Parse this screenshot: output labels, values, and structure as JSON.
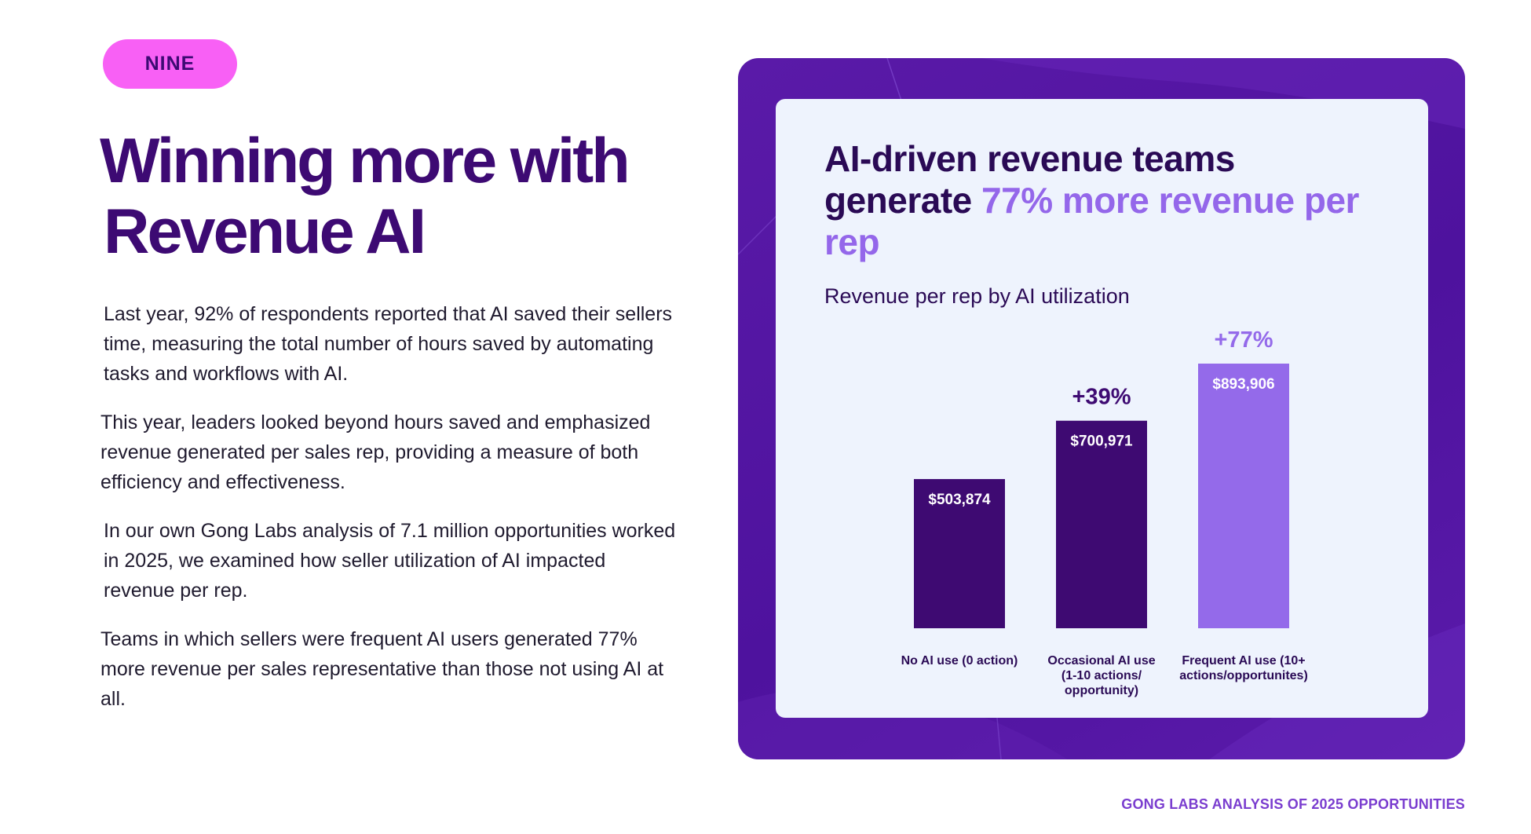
{
  "badge": "NINE",
  "headline": {
    "line1": "Winning more with",
    "line2": "Revenue AI"
  },
  "paragraphs": [
    "Last year, 92% of respondents reported that AI saved their sellers time, measuring the total number of hours saved by automating tasks and workflows with AI.",
    "This year, leaders looked beyond hours saved and emphasized revenue generated per sales rep, providing a measure of both efficiency and effectiveness.",
    "In our own Gong Labs analysis of 7.1 million opportunities worked in 2025, we examined how seller utilization of AI impacted revenue per rep.",
    "Teams in which sellers were frequent AI users generated 77% more revenue per sales representative than those not using AI at all."
  ],
  "chart_title": {
    "part1": "AI-driven revenue teams generate ",
    "accent": "77% more revenue per rep"
  },
  "chart_subtitle": "Revenue per rep by AI utilization",
  "chart_data": {
    "type": "bar",
    "title": "AI-driven revenue teams generate 77% more revenue per rep",
    "subtitle": "Revenue per rep by AI utilization",
    "categories": [
      [
        "No AI use (0 action)"
      ],
      [
        "Occasional AI use",
        "(1-10 actions/",
        "opportunity)"
      ],
      [
        "Frequent AI use (10+",
        "actions/opportunites)"
      ]
    ],
    "values": [
      503874,
      700971,
      893906
    ],
    "value_labels": [
      "$503,874",
      "$700,971",
      "$893,906"
    ],
    "change_labels": [
      "",
      "+39%",
      "+77%"
    ],
    "bar_colors": [
      "#3e0a72",
      "#3e0a72",
      "#946aea"
    ],
    "change_colors": [
      "#3e0a72",
      "#3e0a72",
      "#946aea"
    ],
    "ylim": [
      0,
      893906
    ],
    "grid": false
  },
  "footer": "GONG LABS ANALYSIS OF 2025 OPPORTUNITIES"
}
